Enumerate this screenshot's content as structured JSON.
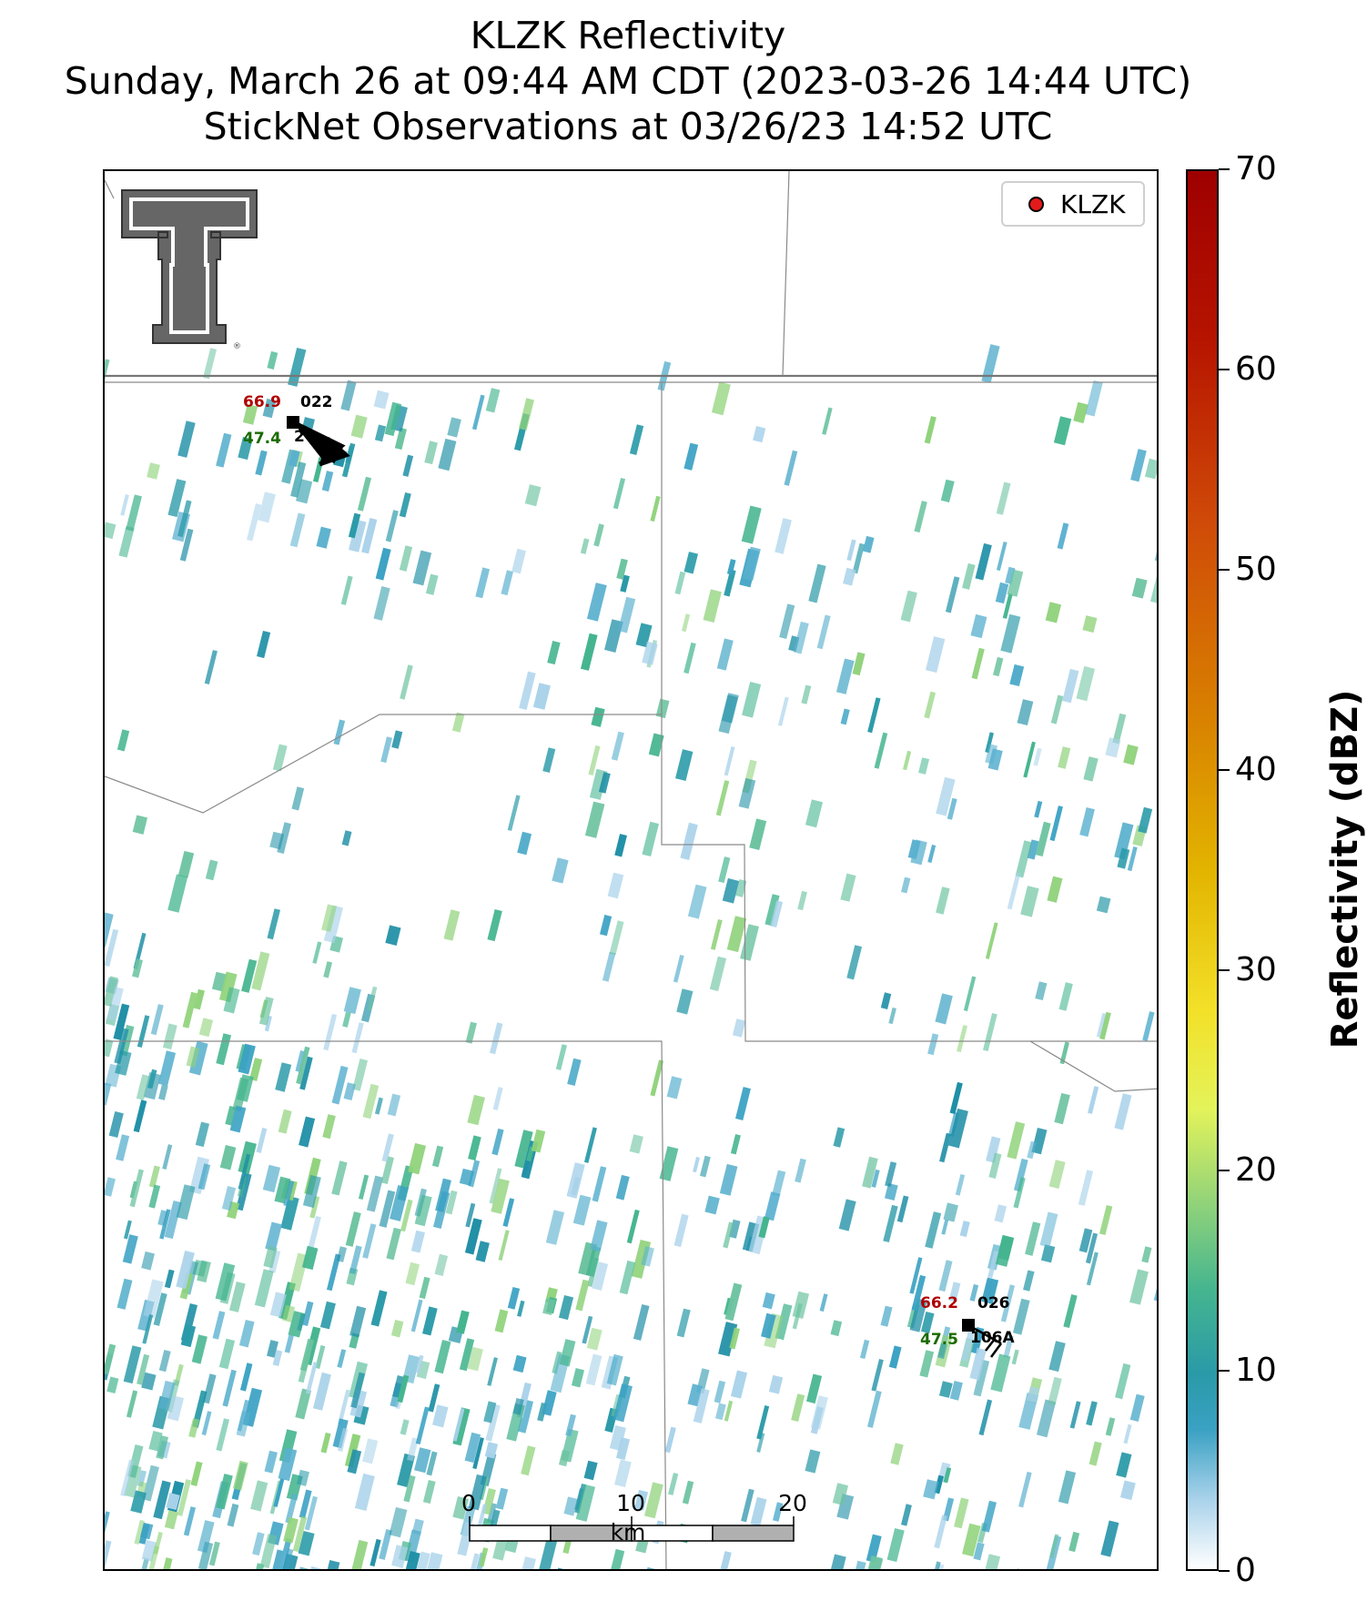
{
  "title": {
    "line1": "KLZK Reflectivity",
    "line2": "Sunday, March 26 at 09:44 AM CDT (2023-03-26 14:44 UTC)",
    "line3": "StickNet Observations at 03/26/23 14:52 UTC"
  },
  "legend": {
    "label": "KLZK",
    "marker_color": "#e31a1c"
  },
  "colorbar": {
    "label": "Reflectivity (dBZ)",
    "ticks": [
      "0",
      "10",
      "20",
      "30",
      "40",
      "50",
      "60",
      "70"
    ],
    "range": [
      0,
      70
    ]
  },
  "stations": [
    {
      "id": "022",
      "temp": "66.9",
      "dewpoint": "47.4",
      "sub_id": "2"
    },
    {
      "id": "026",
      "temp": "66.2",
      "dewpoint": "47.5",
      "sub_id": "106A"
    }
  ],
  "scale_bar": {
    "labels": [
      "0",
      "10",
      "20"
    ],
    "unit": "km"
  },
  "logo": {
    "name": "texas-tech-double-t-logo"
  },
  "colors": {
    "temp": "#b00000",
    "dewpoint": "#1a6a00",
    "echo_blue": "#2a9aa8",
    "echo_green": "#3fb58e"
  }
}
